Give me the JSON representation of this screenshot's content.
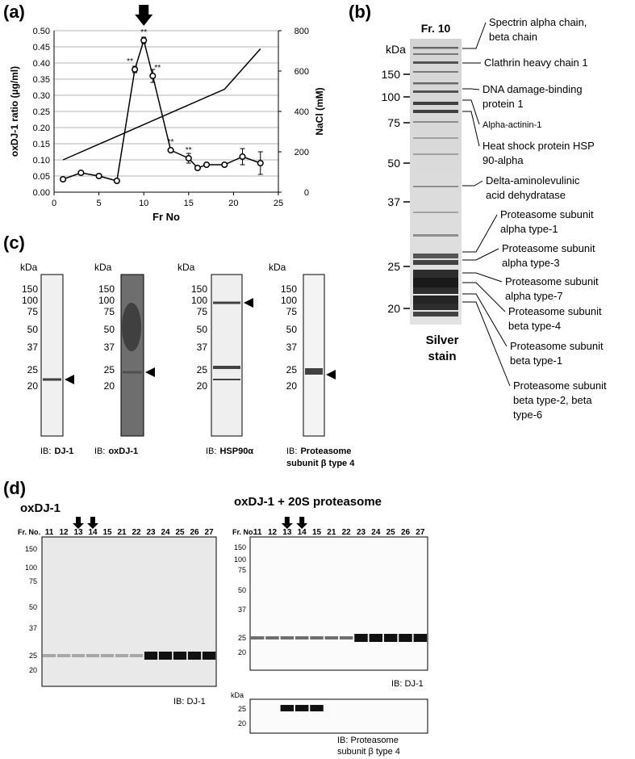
{
  "chart_data": {
    "type": "line",
    "panel_label": "(a)",
    "xlabel": "Fr No",
    "ylabel": "oxDJ-1 ratio (µg/ml)",
    "y2label": "NaCl (mM)",
    "xlim": [
      0,
      25
    ],
    "xticks": [
      0,
      5,
      10,
      15,
      20,
      25
    ],
    "ylim": [
      0,
      0.5
    ],
    "yticks": [
      {
        "value": 0,
        "label": "0.00"
      },
      {
        "value": 0.05,
        "label": "0.05"
      },
      {
        "value": 0.1,
        "label": "0.10"
      },
      {
        "value": 0.15,
        "label": "0.15"
      },
      {
        "value": 0.2,
        "label": "0.20"
      },
      {
        "value": 0.25,
        "label": "0.25"
      },
      {
        "value": 0.3,
        "label": "0.30"
      },
      {
        "value": 0.35,
        "label": "0.35"
      },
      {
        "value": 0.4,
        "label": "0.40"
      },
      {
        "value": 0.45,
        "label": "0.45"
      },
      {
        "value": 0.5,
        "label": "0.50"
      }
    ],
    "y2lim": [
      0,
      800
    ],
    "y2ticks": [
      0,
      200,
      400,
      600,
      800
    ],
    "grid": true,
    "arrow_x": 10,
    "series": [
      {
        "color": "#000000",
        "x": [
          1,
          3,
          5,
          7,
          9,
          10,
          11,
          13,
          15,
          16,
          17,
          19,
          21,
          23
        ],
        "values": [
          0.04,
          0.06,
          0.05,
          0.035,
          0.38,
          0.47,
          0.36,
          0.13,
          0.105,
          0.075,
          0.085,
          0.085,
          0.11,
          0.09
        ],
        "errors": [
          0.005,
          0.005,
          0.005,
          0.005,
          0.01,
          0.01,
          0.02,
          0.005,
          0.015,
          0.005,
          0.005,
          0.005,
          0.025,
          0.035
        ]
      },
      {
        "color": "#000000",
        "axis": "y2",
        "x": [
          1,
          19,
          23
        ],
        "values": [
          160,
          510,
          710
        ]
      }
    ],
    "annotations": [
      {
        "x": 9,
        "text": "**"
      },
      {
        "x": 10,
        "text": "**"
      },
      {
        "x": 11,
        "text": "**"
      },
      {
        "x": 13,
        "text": "**"
      },
      {
        "x": 15,
        "text": "**"
      }
    ]
  },
  "panel_b": {
    "label": "(b)",
    "lane": "Fr. 10",
    "unit": "kDa",
    "markers": [
      150,
      100,
      75,
      50,
      37,
      25,
      20
    ],
    "stain": [
      "Silver",
      "stain"
    ],
    "proteins": [
      [
        "Spectrin alpha chain,",
        "beta chain"
      ],
      [
        "Clathrin heavy chain 1"
      ],
      [
        "DNA damage-binding",
        "protein 1"
      ],
      [
        "Alpha-actinin-1"
      ],
      [
        "Heat shock protein HSP",
        "90-alpha"
      ],
      [
        "Delta-aminolevulinic",
        "acid dehydratase"
      ],
      [
        "Proteasome subunit",
        "alpha type-1"
      ],
      [
        "Proteasome subunit",
        "alpha type-3"
      ],
      [
        "Proteasome subunit",
        "alpha type-7"
      ],
      [
        "Proteasome subunit",
        "beta type-4"
      ],
      [
        "Proteasome subunit",
        "beta type-1"
      ],
      [
        "Proteasome subunit",
        "beta type-2, beta",
        "type-6"
      ]
    ]
  },
  "panel_c": {
    "label": "(c)",
    "blots": [
      {
        "unit": "kDa",
        "markers": [
          150,
          100,
          75,
          50,
          37,
          25,
          20
        ],
        "ib": "IB:",
        "target": [
          "DJ-1"
        ]
      },
      {
        "unit": "kDa",
        "markers": [
          150,
          100,
          75,
          50,
          37,
          25,
          20
        ],
        "ib": "IB:",
        "target": [
          "oxDJ-1"
        ]
      },
      {
        "unit": "kDa",
        "markers": [
          150,
          100,
          75,
          50,
          37,
          25,
          20
        ],
        "ib": "IB:",
        "target": [
          "HSP90α"
        ]
      },
      {
        "unit": "kDa",
        "markers": [
          150,
          100,
          75,
          50,
          37,
          25,
          20
        ],
        "ib": "IB:",
        "target": [
          "Proteasome",
          "subunit β type 4"
        ]
      }
    ]
  },
  "panel_d": {
    "label": "(d)",
    "blots": [
      {
        "title": "oxDJ-1",
        "header": "Fr. No.",
        "fractions": [
          11,
          12,
          13,
          14,
          15,
          21,
          22,
          23,
          24,
          25,
          26,
          27
        ],
        "markers": [
          150,
          100,
          75,
          50,
          37,
          25,
          20
        ],
        "ib": [
          "IB: DJ-1"
        ]
      },
      {
        "title": "oxDJ-1 + 20S proteasome",
        "header": "Fr. No.",
        "fractions": [
          11,
          12,
          13,
          14,
          15,
          21,
          22,
          23,
          24,
          25,
          26,
          27
        ],
        "markers": [
          150,
          100,
          75,
          50,
          37,
          25,
          20
        ],
        "ib": [
          "IB: DJ-1"
        ],
        "sub": {
          "unit": "kDa",
          "markers": [
            25,
            20
          ],
          "ib": [
            "IB: Proteasome",
            "subunit β type 4"
          ]
        }
      }
    ]
  }
}
